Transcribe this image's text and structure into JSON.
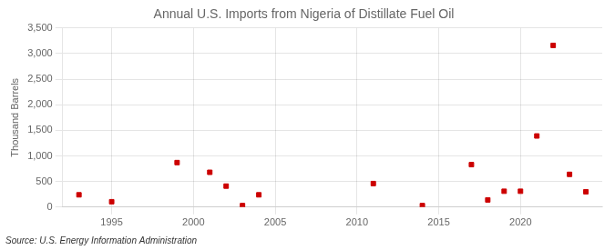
{
  "chart_data": {
    "type": "scatter",
    "title": "Annual U.S. Imports from Nigeria of Distillate Fuel Oil",
    "y_label": "Thousand Barrels",
    "annotations": [
      "Source: U.S. Energy Information Administration"
    ],
    "x": [
      1993,
      1995,
      1999,
      2001,
      2002,
      2003,
      2004,
      2011,
      2014,
      2017,
      2018,
      2019,
      2020,
      2021,
      2022,
      2023,
      2024
    ],
    "values": [
      240,
      105,
      870,
      680,
      410,
      30,
      240,
      460,
      30,
      830,
      140,
      310,
      310,
      1390,
      3160,
      640,
      300
    ],
    "color": "#cc0000",
    "marker": "square",
    "xlim": [
      1992,
      2025
    ],
    "xticks": [
      1995,
      2000,
      2005,
      2010,
      2015,
      2020
    ],
    "ylim": [
      0,
      3500
    ],
    "yticks": [
      0,
      500,
      {
        "value": 1000,
        "label": "1,000"
      },
      {
        "value": 1500,
        "label": "1,500"
      },
      {
        "value": 2000,
        "label": "2,000"
      },
      {
        "value": 2500,
        "label": "2,500"
      },
      {
        "value": 3000,
        "label": "3,000"
      },
      {
        "value": 3500,
        "label": "3,500"
      }
    ],
    "grid": true
  }
}
